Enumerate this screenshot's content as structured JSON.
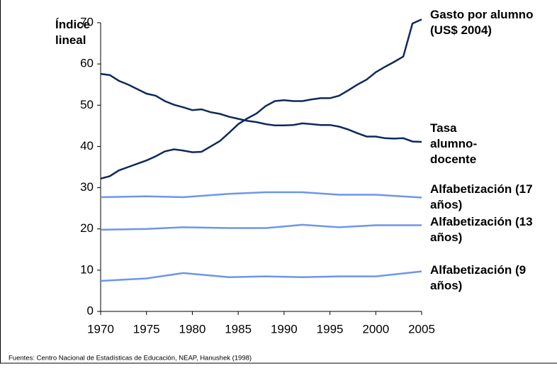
{
  "chart_data": {
    "type": "line",
    "y_label": "Índice\nlineal",
    "source": "Fuentes:  Centro Nacional de Estadísticas de Educación, NEAP, Hanushek (1998)",
    "xlim": [
      1970,
      2005
    ],
    "xticks": [
      1970,
      1975,
      1980,
      1985,
      1990,
      1995,
      2000,
      2005
    ],
    "ylim": [
      0,
      70
    ],
    "yticks": [
      0,
      10,
      20,
      30,
      40,
      50,
      60,
      70
    ],
    "series": [
      {
        "name": "Gasto por alumno\n(US$ 2004)",
        "color": "#0d2a5c",
        "x": [
          1970,
          1971,
          1972,
          1973,
          1974,
          1975,
          1976,
          1977,
          1978,
          1979,
          1980,
          1981,
          1982,
          1983,
          1984,
          1985,
          1986,
          1987,
          1988,
          1989,
          1990,
          1991,
          1992,
          1993,
          1994,
          1995,
          1996,
          1997,
          1998,
          1999,
          2000,
          2001,
          2002,
          2003,
          2004,
          2005
        ],
        "values": [
          32.2,
          32.8,
          34.2,
          35,
          35.8,
          36.6,
          37.6,
          38.8,
          39.3,
          39,
          38.6,
          38.7,
          40,
          41.3,
          43.3,
          45.4,
          46.8,
          48,
          49.8,
          51,
          51.2,
          51,
          51,
          51.4,
          51.7,
          51.7,
          52.3,
          53.6,
          55,
          56.2,
          58,
          59.3,
          60.5,
          61.8,
          69.8,
          70.8
        ]
      },
      {
        "name": "Tasa\nalumno-\ndocente",
        "color": "#0d2a5c",
        "x": [
          1970,
          1971,
          1972,
          1973,
          1974,
          1975,
          1976,
          1977,
          1978,
          1979,
          1980,
          1981,
          1982,
          1983,
          1984,
          1985,
          1986,
          1987,
          1988,
          1989,
          1990,
          1991,
          1992,
          1993,
          1994,
          1995,
          1996,
          1997,
          1998,
          1999,
          2000,
          2001,
          2002,
          2003,
          2004,
          2005
        ],
        "values": [
          57.6,
          57.3,
          55.9,
          55,
          53.9,
          52.8,
          52.3,
          51,
          50.1,
          49.5,
          48.8,
          49,
          48.3,
          47.9,
          47.2,
          46.7,
          46.2,
          45.9,
          45.4,
          45.1,
          45.1,
          45.2,
          45.6,
          45.4,
          45.2,
          45.2,
          44.8,
          44.1,
          43.2,
          42.4,
          42.4,
          42,
          41.9,
          42,
          41.2,
          41.1
        ]
      },
      {
        "name": "Alfabetización (17\naños)",
        "color": "#6d96ea",
        "x": [
          1970,
          1975,
          1979,
          1984,
          1988,
          1992,
          1996,
          2000,
          2005
        ],
        "values": [
          27.7,
          27.9,
          27.7,
          28.5,
          28.9,
          28.9,
          28.3,
          28.3,
          27.6
        ]
      },
      {
        "name": "Alfabetización (13\naños)",
        "color": "#6d96ea",
        "x": [
          1970,
          1975,
          1979,
          1984,
          1988,
          1992,
          1996,
          2000,
          2005
        ],
        "values": [
          19.8,
          20,
          20.4,
          20.2,
          20.2,
          21,
          20.4,
          20.9,
          20.9
        ]
      },
      {
        "name": "Alfabetización (9\naños)",
        "color": "#6d96ea",
        "x": [
          1970,
          1975,
          1979,
          1984,
          1988,
          1992,
          1996,
          2000,
          2005
        ],
        "values": [
          7.4,
          8,
          9.3,
          8.3,
          8.5,
          8.3,
          8.5,
          8.5,
          9.7
        ]
      }
    ]
  }
}
